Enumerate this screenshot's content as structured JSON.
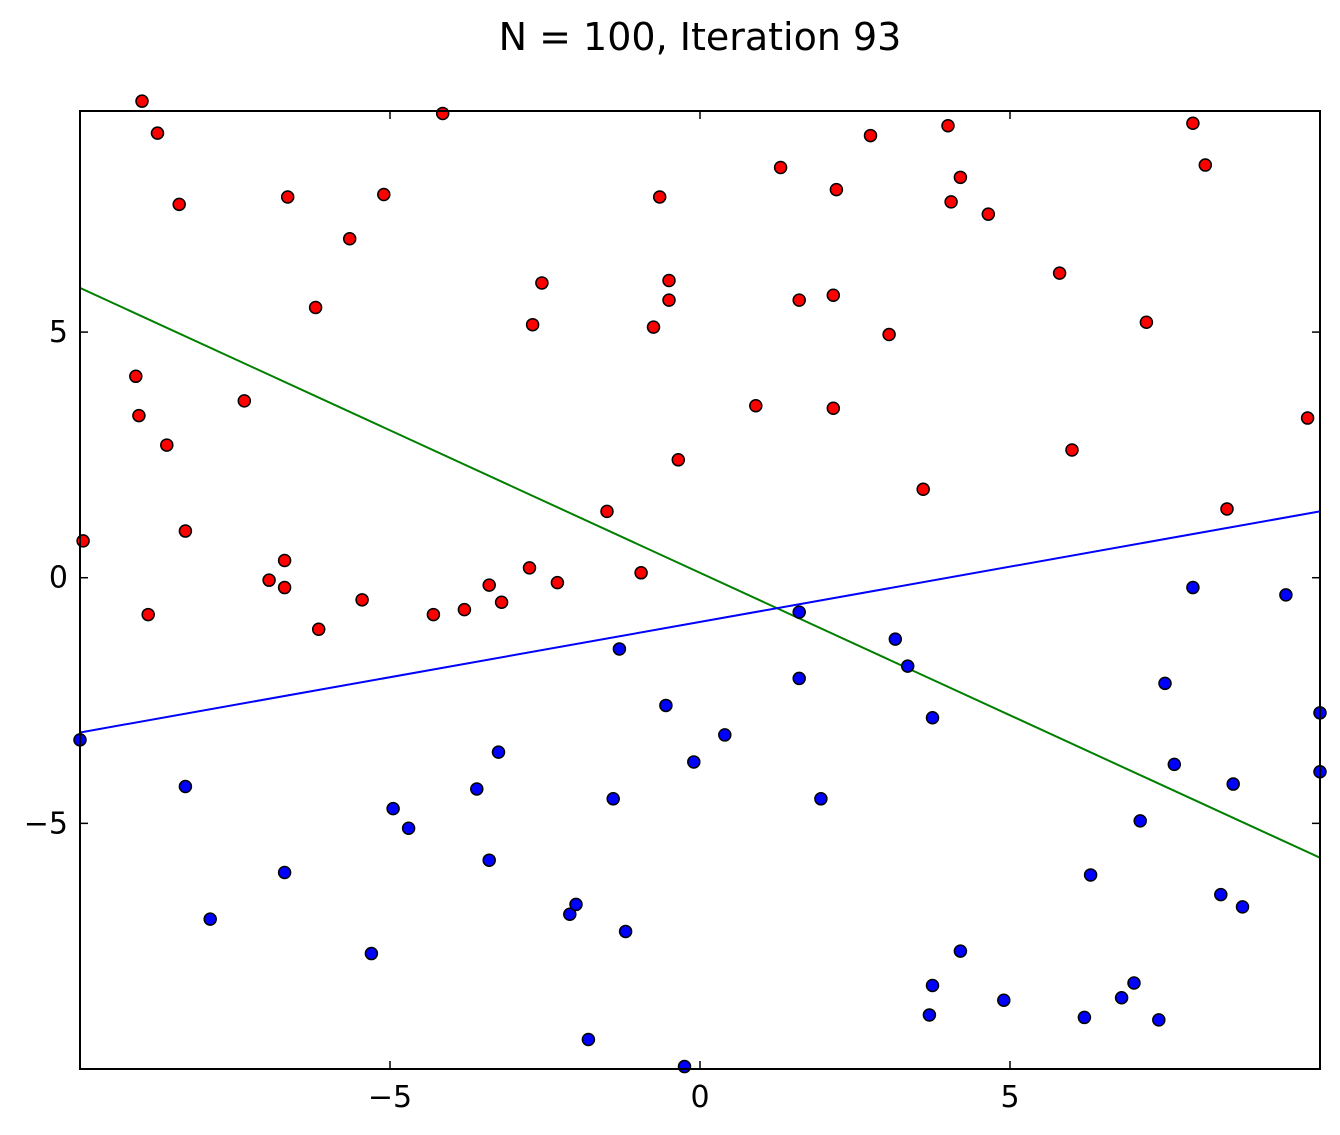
{
  "chart_data": {
    "type": "scatter",
    "title": "N = 100, Iteration 93",
    "xlabel": "",
    "ylabel": "",
    "xlim": [
      -10,
      10
    ],
    "ylim": [
      -10,
      9.5
    ],
    "x_ticks": [
      -5,
      0,
      5
    ],
    "y_ticks": [
      5,
      0,
      -5
    ],
    "x_tick_labels": [
      "−5",
      "0",
      "5"
    ],
    "y_tick_labels": [
      "5",
      "0",
      "−5"
    ],
    "grid": false,
    "series": [
      {
        "color": "#ff0000",
        "points": [
          [
            -9.0,
            9.7
          ],
          [
            -8.75,
            9.05
          ],
          [
            -8.4,
            7.6
          ],
          [
            -6.65,
            7.75
          ],
          [
            -4.15,
            9.45
          ],
          [
            -5.1,
            7.8
          ],
          [
            -5.65,
            6.9
          ],
          [
            -6.2,
            5.5
          ],
          [
            -9.1,
            4.1
          ],
          [
            -9.05,
            3.3
          ],
          [
            -8.6,
            2.7
          ],
          [
            -7.35,
            3.6
          ],
          [
            -9.95,
            0.75
          ],
          [
            -8.3,
            0.95
          ],
          [
            -6.7,
            0.35
          ],
          [
            -6.95,
            -0.05
          ],
          [
            -6.7,
            -0.2
          ],
          [
            -8.9,
            -0.75
          ],
          [
            -6.15,
            -1.05
          ],
          [
            -5.45,
            -0.45
          ],
          [
            -4.3,
            -0.75
          ],
          [
            -3.8,
            -0.65
          ],
          [
            -3.4,
            -0.15
          ],
          [
            -3.2,
            -0.5
          ],
          [
            -2.75,
            0.2
          ],
          [
            -2.3,
            -0.1
          ],
          [
            -2.7,
            5.15
          ],
          [
            -2.55,
            6.0
          ],
          [
            -1.5,
            1.35
          ],
          [
            -0.95,
            0.1
          ],
          [
            -0.75,
            5.1
          ],
          [
            -0.65,
            7.75
          ],
          [
            -0.5,
            6.05
          ],
          [
            -0.5,
            5.65
          ],
          [
            -0.35,
            2.4
          ],
          [
            0.9,
            3.5
          ],
          [
            1.3,
            8.35
          ],
          [
            1.6,
            5.65
          ],
          [
            2.15,
            5.75
          ],
          [
            2.2,
            7.9
          ],
          [
            2.15,
            3.45
          ],
          [
            2.75,
            9.0
          ],
          [
            3.05,
            4.95
          ],
          [
            3.6,
            1.8
          ],
          [
            4.0,
            9.2
          ],
          [
            4.05,
            7.65
          ],
          [
            4.2,
            8.15
          ],
          [
            4.65,
            7.4
          ],
          [
            5.8,
            6.2
          ],
          [
            6.0,
            2.6
          ],
          [
            7.2,
            5.2
          ],
          [
            7.95,
            9.25
          ],
          [
            8.15,
            8.4
          ],
          [
            8.5,
            1.4
          ],
          [
            9.8,
            3.25
          ]
        ]
      },
      {
        "color": "#0000ff",
        "points": [
          [
            -10.0,
            -3.3
          ],
          [
            -8.3,
            -4.25
          ],
          [
            -7.9,
            -6.95
          ],
          [
            -6.7,
            -6.0
          ],
          [
            -5.3,
            -7.65
          ],
          [
            -4.95,
            -4.7
          ],
          [
            -4.7,
            -5.1
          ],
          [
            -3.6,
            -4.3
          ],
          [
            -3.4,
            -5.75
          ],
          [
            -3.25,
            -3.55
          ],
          [
            -2.1,
            -6.85
          ],
          [
            -2.0,
            -6.65
          ],
          [
            -1.8,
            -9.4
          ],
          [
            -1.4,
            -4.5
          ],
          [
            -1.3,
            -1.45
          ],
          [
            -1.2,
            -7.2
          ],
          [
            -0.55,
            -2.6
          ],
          [
            -0.25,
            -9.95
          ],
          [
            -0.1,
            -3.75
          ],
          [
            0.4,
            -3.2
          ],
          [
            1.6,
            -2.05
          ],
          [
            1.6,
            -0.7
          ],
          [
            1.95,
            -4.5
          ],
          [
            3.15,
            -1.25
          ],
          [
            3.35,
            -1.8
          ],
          [
            3.75,
            -2.85
          ],
          [
            3.75,
            -8.3
          ],
          [
            3.7,
            -8.9
          ],
          [
            4.2,
            -7.6
          ],
          [
            4.9,
            -8.6
          ],
          [
            6.2,
            -8.95
          ],
          [
            6.3,
            -6.05
          ],
          [
            6.8,
            -8.55
          ],
          [
            7.0,
            -8.25
          ],
          [
            7.1,
            -4.95
          ],
          [
            7.4,
            -9.0
          ],
          [
            7.5,
            -2.15
          ],
          [
            7.65,
            -3.8
          ],
          [
            7.95,
            -0.2
          ],
          [
            8.4,
            -6.45
          ],
          [
            8.6,
            -4.2
          ],
          [
            8.75,
            -6.7
          ],
          [
            9.45,
            -0.35
          ],
          [
            10.0,
            -2.75
          ],
          [
            10.0,
            -3.95
          ]
        ]
      }
    ],
    "lines": [
      {
        "color": "#008000",
        "points": [
          [
            -10,
            5.9
          ],
          [
            10,
            -5.7
          ]
        ]
      },
      {
        "color": "#0000ff",
        "points": [
          [
            -10,
            -3.15
          ],
          [
            10,
            1.35
          ]
        ]
      }
    ]
  }
}
